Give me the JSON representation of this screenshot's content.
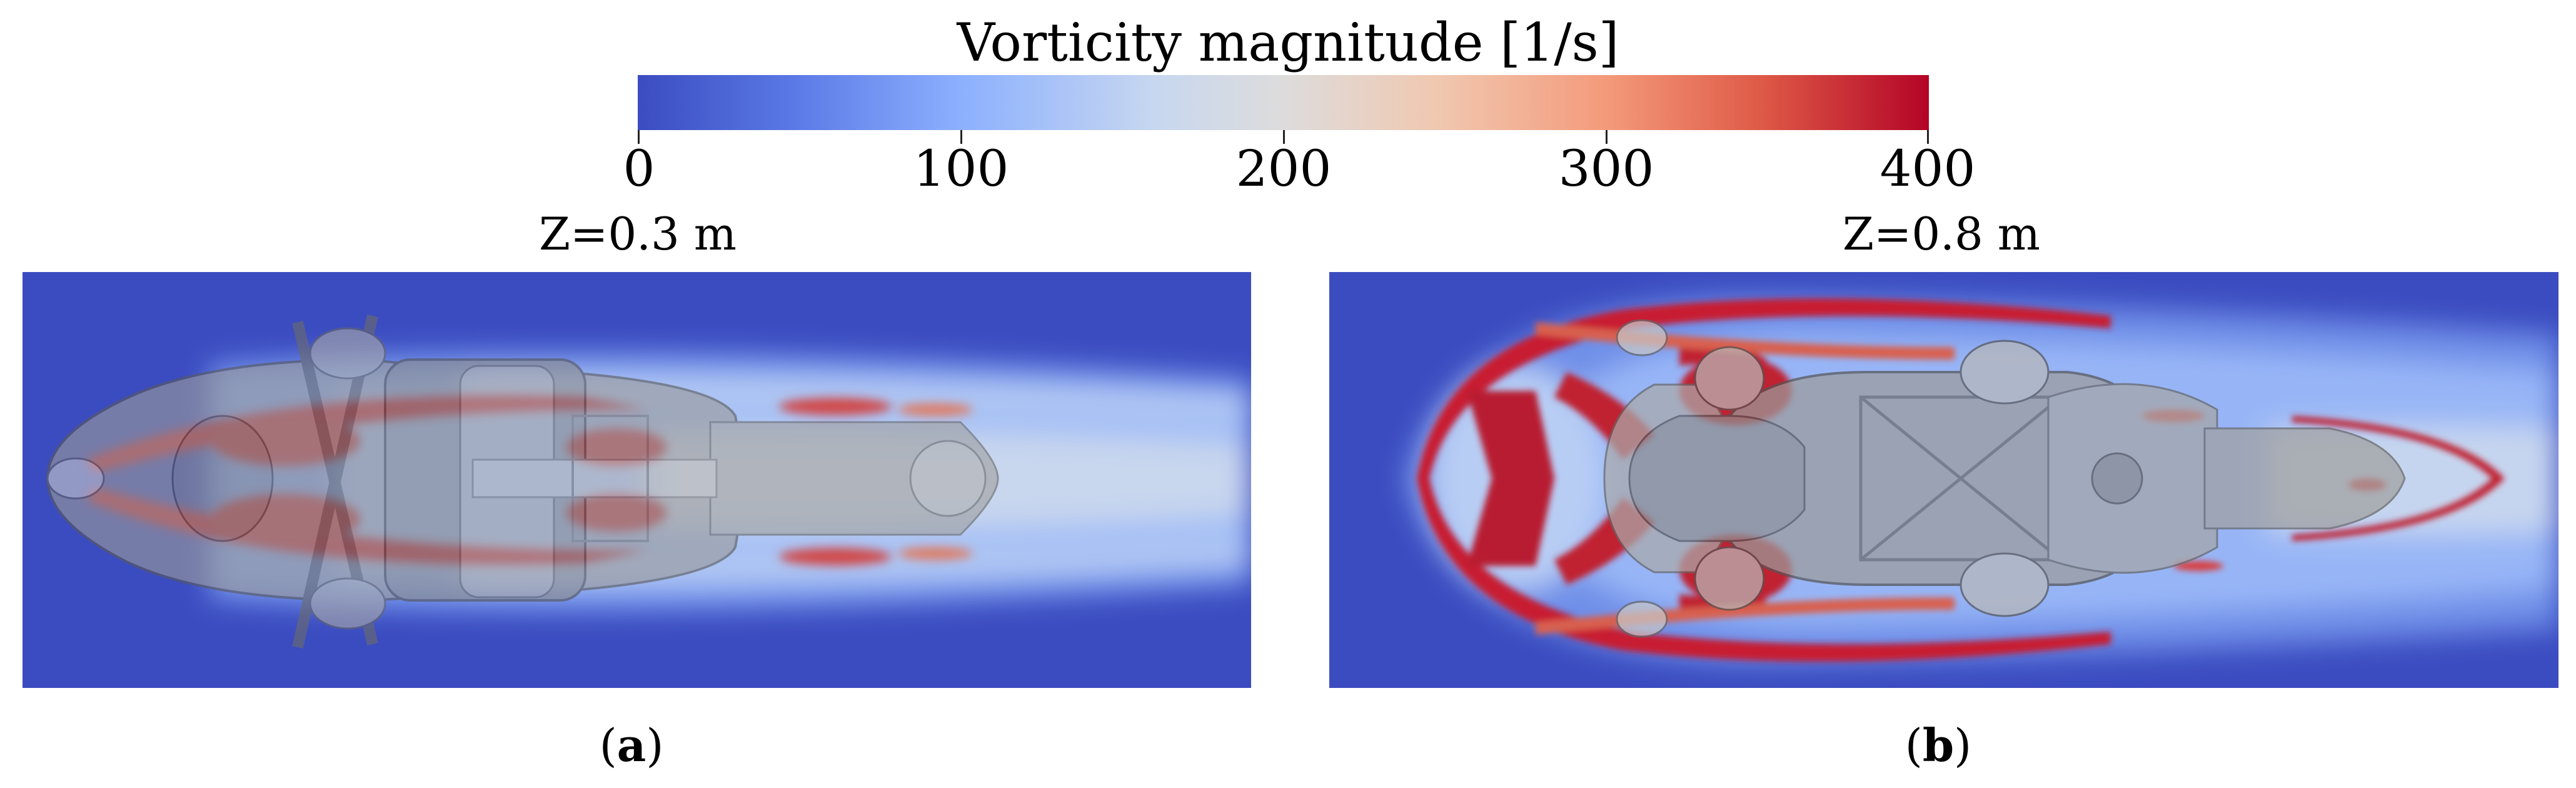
{
  "colorbar": {
    "title": "Vorticity magnitude [1/s]",
    "min": 0,
    "max": 400,
    "ticks": [
      "0",
      "100",
      "200",
      "300",
      "400"
    ],
    "colors": {
      "low": "#3b4cc0",
      "mid": "#dddcdc",
      "high": "#b40426"
    }
  },
  "panels": [
    {
      "title": "Z=0.3 m",
      "caption_open": "(",
      "caption_letter": "a",
      "caption_close": ")"
    },
    {
      "title": "Z=0.8 m",
      "caption_open": "(",
      "caption_letter": "b",
      "caption_close": ")"
    }
  ]
}
